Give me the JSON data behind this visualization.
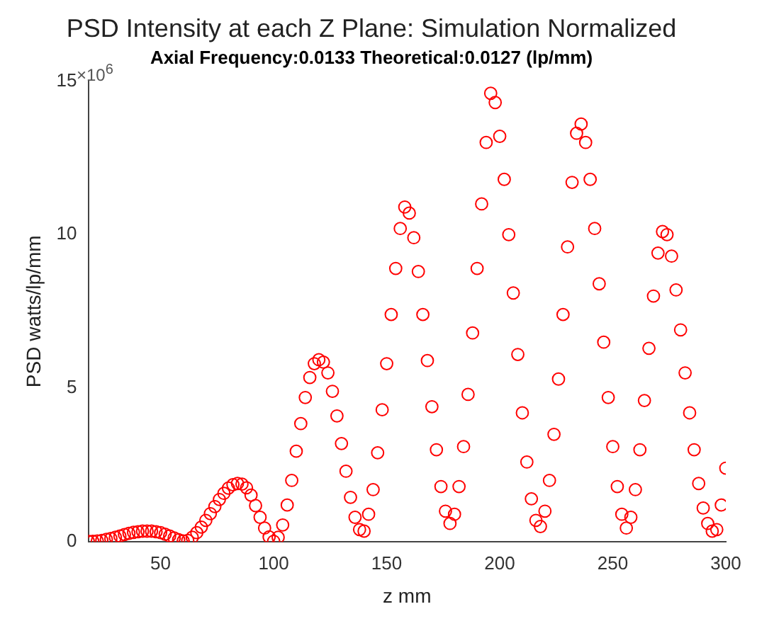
{
  "chart_data": {
    "type": "scatter",
    "title": "PSD Intensity at each Z Plane: Simulation Normalized",
    "subtitle": "Axial Frequency:0.0133 Theoretical:0.0127 (lp/mm)",
    "xlabel": "z mm",
    "ylabel": "PSD watts/lp/mm",
    "annotations": [
      "×10$^{6}$"
    ],
    "x": [
      18,
      20,
      22,
      24,
      26,
      28,
      30,
      32,
      34,
      36,
      38,
      40,
      42,
      44,
      46,
      48,
      50,
      52,
      54,
      56,
      58,
      60,
      62,
      64,
      66,
      68,
      70,
      72,
      74,
      76,
      78,
      80,
      82,
      84,
      86,
      88,
      90,
      92,
      94,
      96,
      98,
      100,
      102,
      104,
      106,
      108,
      110,
      112,
      114,
      116,
      118,
      120,
      122,
      124,
      126,
      128,
      130,
      132,
      134,
      136,
      138,
      140,
      142,
      144,
      146,
      148,
      150,
      152,
      154,
      156,
      158,
      160,
      162,
      164,
      166,
      168,
      170,
      172,
      174,
      176,
      178,
      180,
      182,
      184,
      186,
      188,
      190,
      192,
      194,
      196,
      198,
      200,
      202,
      204,
      206,
      208,
      210,
      212,
      214,
      216,
      218,
      220,
      222,
      224,
      226,
      228,
      230,
      232,
      234,
      236,
      238,
      240,
      242,
      244,
      246,
      248,
      250,
      252,
      254,
      256,
      258,
      260,
      262,
      264,
      266,
      268,
      270,
      272,
      274,
      276,
      278,
      280,
      282,
      284,
      286,
      288,
      290,
      292,
      294,
      296,
      298,
      300
    ],
    "series": [
      {
        "color": "#ff0000",
        "values": [
          0.02,
          0.02,
          0.03,
          0.05,
          0.08,
          0.11,
          0.15,
          0.19,
          0.24,
          0.28,
          0.31,
          0.33,
          0.35,
          0.35,
          0.35,
          0.33,
          0.3,
          0.25,
          0.19,
          0.13,
          0.07,
          0.03,
          0.05,
          0.15,
          0.3,
          0.48,
          0.7,
          0.92,
          1.15,
          1.38,
          1.58,
          1.75,
          1.86,
          1.9,
          1.88,
          1.76,
          1.52,
          1.18,
          0.8,
          0.45,
          0.16,
          0.02,
          0.15,
          0.55,
          1.2,
          2.0,
          2.95,
          3.85,
          4.7,
          5.35,
          5.8,
          5.93,
          5.85,
          5.5,
          4.9,
          4.1,
          3.2,
          2.3,
          1.45,
          0.8,
          0.4,
          0.35,
          0.9,
          1.7,
          2.9,
          4.3,
          5.8,
          7.4,
          8.9,
          10.2,
          10.9,
          10.7,
          9.9,
          8.8,
          7.4,
          5.9,
          4.4,
          3.0,
          1.8,
          1.0,
          0.6,
          0.9,
          1.8,
          3.1,
          4.8,
          6.8,
          8.9,
          11.0,
          13.0,
          14.6,
          14.3,
          13.2,
          11.8,
          10.0,
          8.1,
          6.1,
          4.2,
          2.6,
          1.4,
          0.7,
          0.5,
          1.0,
          2.0,
          3.5,
          5.3,
          7.4,
          9.6,
          11.7,
          13.3,
          13.6,
          13.0,
          11.8,
          10.2,
          8.4,
          6.5,
          4.7,
          3.1,
          1.8,
          0.9,
          0.45,
          0.8,
          1.7,
          3.0,
          4.6,
          6.3,
          8.0,
          9.4,
          10.1,
          10.0,
          9.3,
          8.2,
          6.9,
          5.5,
          4.2,
          3.0,
          1.9,
          1.1,
          0.6,
          0.35,
          0.4,
          1.2,
          2.4
        ]
      }
    ],
    "xlim": [
      18,
      300
    ],
    "xticks": [
      50,
      100,
      150,
      200,
      250,
      300
    ],
    "ylim": [
      0,
      15
    ],
    "yticks": [
      0,
      5,
      10,
      15
    ],
    "marker": "circle",
    "grid": false,
    "legend": false
  }
}
